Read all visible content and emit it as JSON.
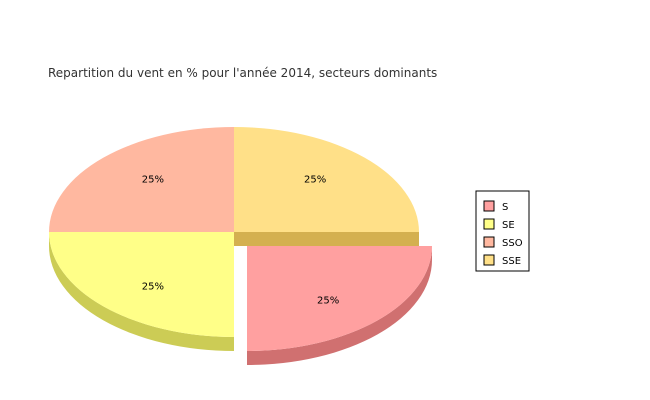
{
  "chart_data": {
    "type": "pie",
    "title": "Repartition du vent en % pour l'année 2014, secteurs dominants",
    "categories": [
      "S",
      "SE",
      "SSO",
      "SSE"
    ],
    "values": [
      25,
      25,
      25,
      25
    ],
    "labels": [
      "25%",
      "25%",
      "25%",
      "25%"
    ],
    "colors": [
      "#FFA0A0",
      "#FFFF88",
      "#FFB8A0",
      "#FFE088"
    ],
    "side_colors": [
      "#D07070",
      "#CCCC55",
      "#D09080",
      "#D4B050"
    ],
    "exploded": [
      "S"
    ],
    "legend_position": "right",
    "style": "3d-tilted"
  }
}
